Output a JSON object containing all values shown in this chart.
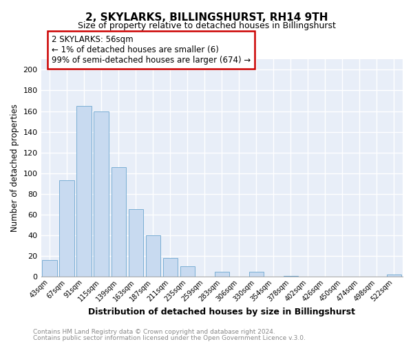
{
  "title": "2, SKYLARKS, BILLINGSHURST, RH14 9TH",
  "subtitle": "Size of property relative to detached houses in Billingshurst",
  "xlabel": "Distribution of detached houses by size in Billingshurst",
  "ylabel": "Number of detached properties",
  "bar_color": "#c8daf0",
  "bar_edge_color": "#7aaed4",
  "categories": [
    "43sqm",
    "67sqm",
    "91sqm",
    "115sqm",
    "139sqm",
    "163sqm",
    "187sqm",
    "211sqm",
    "235sqm",
    "259sqm",
    "283sqm",
    "306sqm",
    "330sqm",
    "354sqm",
    "378sqm",
    "402sqm",
    "426sqm",
    "450sqm",
    "474sqm",
    "498sqm",
    "522sqm"
  ],
  "values": [
    16,
    93,
    165,
    160,
    106,
    65,
    40,
    18,
    10,
    0,
    5,
    0,
    5,
    0,
    1,
    0,
    0,
    0,
    0,
    0,
    2
  ],
  "ylim": [
    0,
    210
  ],
  "yticks": [
    0,
    20,
    40,
    60,
    80,
    100,
    120,
    140,
    160,
    180,
    200
  ],
  "annotation_title": "2 SKYLARKS: 56sqm",
  "annotation_line1": "← 1% of detached houses are smaller (6)",
  "annotation_line2": "99% of semi-detached houses are larger (674) →",
  "annotation_box_color": "#ffffff",
  "annotation_box_edge": "#cc0000",
  "footer1": "Contains HM Land Registry data © Crown copyright and database right 2024.",
  "footer2": "Contains public sector information licensed under the Open Government Licence v.3.0.",
  "background_color": "#ffffff",
  "plot_bg_color": "#e8eef8",
  "grid_color": "#ffffff",
  "title_fontsize": 11,
  "subtitle_fontsize": 9
}
